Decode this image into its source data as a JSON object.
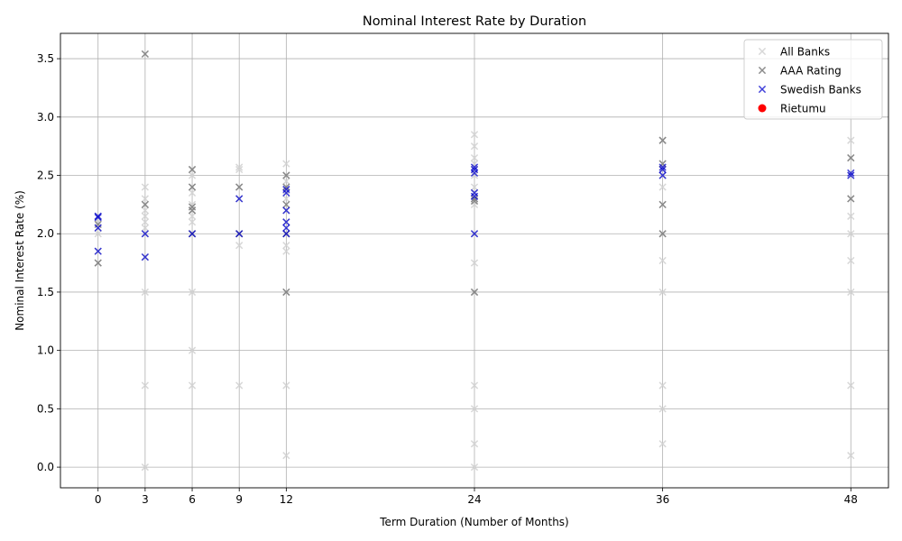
{
  "chart_data": {
    "type": "scatter",
    "title": "Nominal Interest Rate by Duration",
    "xlabel": "Term Duration (Number of Months)",
    "ylabel": "Nominal Interest Rate (%)",
    "xticks": [
      0,
      3,
      6,
      9,
      12,
      24,
      36,
      48
    ],
    "yticks": [
      0.0,
      0.5,
      1.0,
      1.5,
      2.0,
      2.5,
      3.0,
      3.5
    ],
    "ytick_labels": [
      "0.0",
      "0.5",
      "1.0",
      "1.5",
      "2.0",
      "2.5",
      "3.0",
      "3.5"
    ],
    "xlim": [
      -2.4,
      50.4
    ],
    "ylim": [
      -0.177,
      3.717
    ],
    "grid": true,
    "legend_position": "upper right",
    "series": [
      {
        "name": "All Banks",
        "color": "#d3d3d3",
        "marker": "x",
        "points": [
          [
            0,
            1.75
          ],
          [
            0,
            1.85
          ],
          [
            0,
            2.0
          ],
          [
            0,
            2.05
          ],
          [
            0,
            2.1
          ],
          [
            0,
            2.15
          ],
          [
            3,
            0.0
          ],
          [
            3,
            0.7
          ],
          [
            3,
            1.5
          ],
          [
            3,
            1.8
          ],
          [
            3,
            2.0
          ],
          [
            3,
            2.05
          ],
          [
            3,
            2.1
          ],
          [
            3,
            2.15
          ],
          [
            3,
            2.2
          ],
          [
            3,
            2.25
          ],
          [
            3,
            2.3
          ],
          [
            3,
            2.4
          ],
          [
            6,
            0.7
          ],
          [
            6,
            1.0
          ],
          [
            6,
            1.5
          ],
          [
            6,
            2.0
          ],
          [
            6,
            2.1
          ],
          [
            6,
            2.15
          ],
          [
            6,
            2.2
          ],
          [
            6,
            2.25
          ],
          [
            6,
            2.35
          ],
          [
            6,
            2.4
          ],
          [
            6,
            2.5
          ],
          [
            6,
            2.55
          ],
          [
            9,
            0.7
          ],
          [
            9,
            1.9
          ],
          [
            9,
            2.0
          ],
          [
            9,
            2.3
          ],
          [
            9,
            2.4
          ],
          [
            9,
            2.55
          ],
          [
            9,
            2.57
          ],
          [
            12,
            0.1
          ],
          [
            12,
            0.7
          ],
          [
            12,
            1.5
          ],
          [
            12,
            1.85
          ],
          [
            12,
            1.9
          ],
          [
            12,
            2.0
          ],
          [
            12,
            2.1
          ],
          [
            12,
            2.2
          ],
          [
            12,
            2.3
          ],
          [
            12,
            2.37
          ],
          [
            12,
            2.45
          ],
          [
            12,
            2.5
          ],
          [
            12,
            2.6
          ],
          [
            24,
            0.0
          ],
          [
            24,
            0.2
          ],
          [
            24,
            0.5
          ],
          [
            24,
            0.7
          ],
          [
            24,
            1.5
          ],
          [
            24,
            1.75
          ],
          [
            24,
            2.0
          ],
          [
            24,
            2.25
          ],
          [
            24,
            2.3
          ],
          [
            24,
            2.35
          ],
          [
            24,
            2.4
          ],
          [
            24,
            2.5
          ],
          [
            24,
            2.55
          ],
          [
            24,
            2.6
          ],
          [
            24,
            2.65
          ],
          [
            24,
            2.75
          ],
          [
            24,
            2.85
          ],
          [
            36,
            0.2
          ],
          [
            36,
            0.5
          ],
          [
            36,
            0.7
          ],
          [
            36,
            1.5
          ],
          [
            36,
            1.77
          ],
          [
            36,
            2.0
          ],
          [
            36,
            2.25
          ],
          [
            36,
            2.4
          ],
          [
            36,
            2.5
          ],
          [
            36,
            2.55
          ],
          [
            36,
            2.6
          ],
          [
            36,
            2.8
          ],
          [
            48,
            0.1
          ],
          [
            48,
            0.7
          ],
          [
            48,
            1.5
          ],
          [
            48,
            1.77
          ],
          [
            48,
            2.0
          ],
          [
            48,
            2.15
          ],
          [
            48,
            2.3
          ],
          [
            48,
            2.5
          ],
          [
            48,
            2.65
          ],
          [
            48,
            2.8
          ]
        ]
      },
      {
        "name": "AAA Rating",
        "color": "#808080",
        "marker": "x",
        "points": [
          [
            0,
            1.75
          ],
          [
            0,
            2.08
          ],
          [
            3,
            2.25
          ],
          [
            3,
            3.54
          ],
          [
            6,
            2.0
          ],
          [
            6,
            2.2
          ],
          [
            6,
            2.23
          ],
          [
            6,
            2.4
          ],
          [
            6,
            2.55
          ],
          [
            9,
            2.0
          ],
          [
            9,
            2.4
          ],
          [
            12,
            1.5
          ],
          [
            12,
            2.0
          ],
          [
            12,
            2.25
          ],
          [
            12,
            2.4
          ],
          [
            12,
            2.5
          ],
          [
            24,
            1.5
          ],
          [
            24,
            2.28
          ],
          [
            24,
            2.3
          ],
          [
            36,
            2.0
          ],
          [
            36,
            2.25
          ],
          [
            36,
            2.6
          ],
          [
            36,
            2.8
          ],
          [
            48,
            2.3
          ],
          [
            48,
            2.65
          ]
        ]
      },
      {
        "name": "Swedish Banks",
        "color": "#0000cd",
        "marker": "x",
        "points": [
          [
            0,
            1.85
          ],
          [
            0,
            2.05
          ],
          [
            0,
            2.14
          ],
          [
            0,
            2.15
          ],
          [
            3,
            1.8
          ],
          [
            3,
            2.0
          ],
          [
            6,
            2.0
          ],
          [
            9,
            2.0
          ],
          [
            9,
            2.3
          ],
          [
            12,
            2.0
          ],
          [
            12,
            2.05
          ],
          [
            12,
            2.1
          ],
          [
            12,
            2.2
          ],
          [
            12,
            2.35
          ],
          [
            12,
            2.38
          ],
          [
            24,
            2.0
          ],
          [
            24,
            2.32
          ],
          [
            24,
            2.35
          ],
          [
            24,
            2.52
          ],
          [
            24,
            2.55
          ],
          [
            24,
            2.57
          ],
          [
            36,
            2.5
          ],
          [
            36,
            2.55
          ],
          [
            36,
            2.57
          ],
          [
            48,
            2.5
          ],
          [
            48,
            2.52
          ]
        ]
      },
      {
        "name": "Rietumu",
        "color": "#ff0000",
        "marker": "o",
        "points": []
      }
    ]
  }
}
